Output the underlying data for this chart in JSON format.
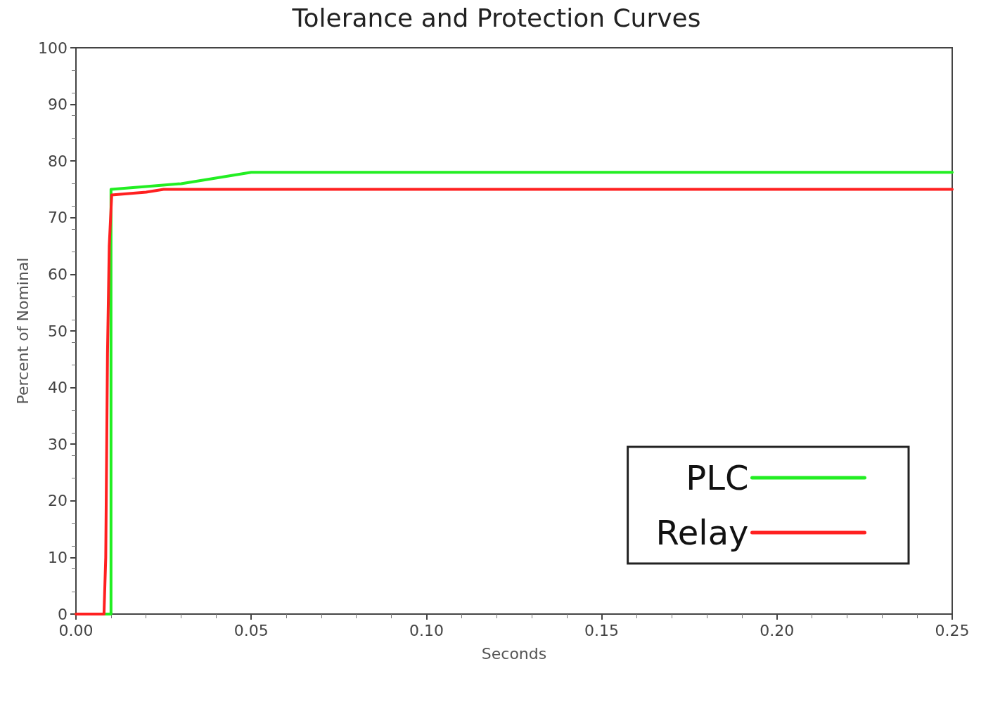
{
  "chart_data": {
    "type": "line",
    "title": "Tolerance and Protection Curves",
    "xlabel": "Seconds",
    "ylabel": "Percent of Nominal",
    "series": [
      {
        "name": "PLC",
        "color": "#22ee22",
        "x": [
          0.0,
          0.01,
          0.01,
          0.02,
          0.03,
          0.05,
          0.25
        ],
        "values": [
          0,
          0,
          75,
          75.5,
          76,
          78,
          78
        ]
      },
      {
        "name": "Relay",
        "color": "#ff2020",
        "x": [
          0.0,
          0.008,
          0.0085,
          0.009,
          0.0095,
          0.0102,
          0.02,
          0.025,
          0.25
        ],
        "values": [
          0,
          0,
          10,
          46,
          65,
          74,
          74.5,
          75,
          75
        ]
      }
    ],
    "xlim": [
      0,
      0.25
    ],
    "xticks": [
      {
        "value": 0,
        "label": "0.00"
      },
      {
        "value": 0.05,
        "label": "0.05"
      },
      {
        "value": 0.1,
        "label": "0.10"
      },
      {
        "value": 0.15,
        "label": "0.15"
      },
      {
        "value": 0.2,
        "label": "0.20"
      },
      {
        "value": 0.25,
        "label": "0.25"
      }
    ],
    "ylim": [
      0,
      100
    ],
    "yticks": [
      0,
      10,
      20,
      30,
      40,
      50,
      60,
      70,
      80,
      90,
      100
    ],
    "grid": false,
    "legend": "bottom right",
    "marker": "none",
    "line_style": "solid"
  }
}
